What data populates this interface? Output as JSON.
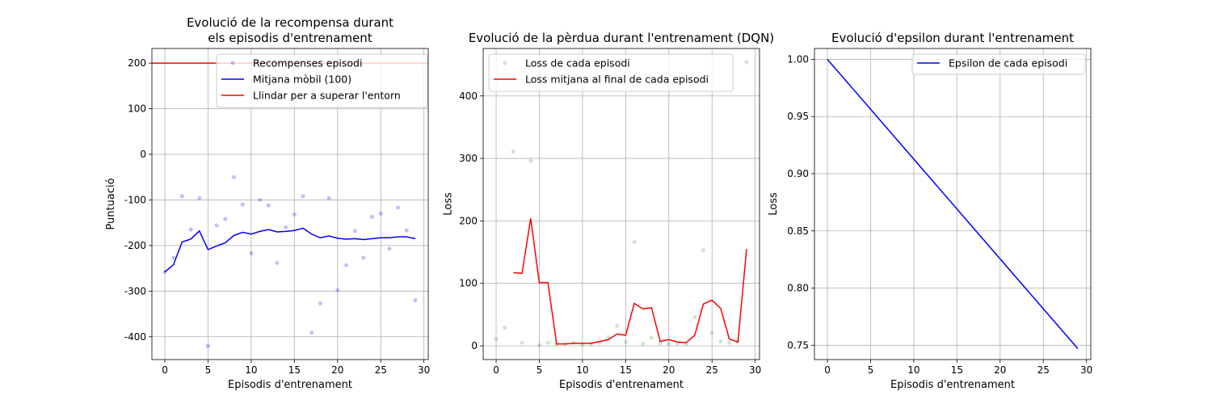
{
  "chart_data": [
    {
      "type": "scatter",
      "title_lines": [
        "Evolució de la recompensa durant",
        "els episodis d'entrenament"
      ],
      "xlabel": "Episodis d'entrenament",
      "ylabel": "Puntuació",
      "xlim": [
        -1.5,
        30.5
      ],
      "ylim": [
        -450,
        232
      ],
      "xticks": [
        0,
        5,
        10,
        15,
        20,
        25,
        30
      ],
      "yticks": [
        -400,
        -300,
        -200,
        -100,
        0,
        100,
        200
      ],
      "grid": true,
      "legend_position": "upper-right",
      "series": [
        {
          "name": "Recompenses episodi",
          "kind": "scatter",
          "color": "#0000ff",
          "x": [
            0,
            1,
            2,
            3,
            4,
            5,
            6,
            7,
            8,
            9,
            10,
            11,
            12,
            13,
            14,
            15,
            16,
            17,
            18,
            19,
            20,
            21,
            22,
            23,
            24,
            25,
            26,
            27,
            28,
            29
          ],
          "y": [
            -258,
            -227,
            -92,
            -165,
            -96,
            -420,
            -156,
            -142,
            -50,
            -110,
            -217,
            -100,
            -112,
            -238,
            -160,
            -132,
            -92,
            -391,
            -327,
            -96,
            -298,
            -243,
            -168,
            -227,
            -137,
            -130,
            -207,
            -117,
            -167,
            -320
          ]
        },
        {
          "name": "Mitjana mòbil (100)",
          "kind": "line",
          "color": "#0000ff",
          "x": [
            0,
            1,
            2,
            3,
            4,
            5,
            6,
            7,
            8,
            9,
            10,
            11,
            12,
            13,
            14,
            15,
            16,
            17,
            18,
            19,
            20,
            21,
            22,
            23,
            24,
            25,
            26,
            27,
            28,
            29
          ],
          "y": [
            -258,
            -242,
            -192,
            -186,
            -168,
            -209,
            -201,
            -194,
            -178,
            -171,
            -175,
            -169,
            -165,
            -170,
            -169,
            -167,
            -162,
            -175,
            -183,
            -179,
            -184,
            -186,
            -185,
            -187,
            -185,
            -183,
            -183,
            -181,
            -181,
            -185
          ]
        },
        {
          "name": "Llindar per a superar l'entorn",
          "kind": "hline",
          "color": "#ff0000",
          "y": 200
        }
      ]
    },
    {
      "type": "scatter",
      "title_lines": [
        "Evolució de la pèrdua durant l'entrenament (DQN)"
      ],
      "xlabel": "Episodis d'entrenament",
      "ylabel": "Loss",
      "xlim": [
        -1.5,
        30.5
      ],
      "ylim": [
        -22,
        476
      ],
      "xticks": [
        0,
        5,
        10,
        15,
        20,
        25,
        30
      ],
      "yticks": [
        0,
        100,
        200,
        300,
        400
      ],
      "grid": true,
      "legend_position": "upper-left",
      "series": [
        {
          "name": "Loss de cada episodi",
          "kind": "scatter",
          "color": "#2ca02c",
          "x": [
            0,
            1,
            2,
            3,
            4,
            5,
            6,
            7,
            8,
            9,
            10,
            11,
            12,
            13,
            14,
            15,
            16,
            17,
            18,
            19,
            20,
            21,
            22,
            23,
            24,
            25,
            26,
            27,
            28,
            29
          ],
          "y": [
            11,
            29,
            311,
            5,
            296,
            1,
            5,
            2,
            3,
            5,
            2,
            3,
            5,
            14,
            32,
            6,
            166,
            3,
            13,
            4,
            3,
            4,
            3,
            46,
            153,
            21,
            7,
            5,
            7,
            454
          ]
        },
        {
          "name": "Loss mitjana al final de cada episodi",
          "kind": "line",
          "color": "#ff0000",
          "x": [
            2,
            3,
            4,
            5,
            6,
            7,
            8,
            9,
            10,
            11,
            12,
            13,
            14,
            15,
            16,
            17,
            18,
            19,
            20,
            21,
            22,
            23,
            24,
            25,
            26,
            27,
            28,
            29
          ],
          "y": [
            117,
            116,
            204,
            101,
            101,
            3,
            3,
            4,
            4,
            4,
            7,
            10,
            19,
            17,
            68,
            59,
            61,
            7,
            10,
            6,
            5,
            17,
            67,
            73,
            60,
            11,
            6,
            155
          ]
        }
      ]
    },
    {
      "type": "line",
      "title_lines": [
        "Evolució d'epsilon durant l'entrenament"
      ],
      "xlabel": "Episodis d'entrenament",
      "ylabel": "Loss",
      "xlim": [
        -1.5,
        30.5
      ],
      "ylim": [
        0.7375,
        1.0095
      ],
      "xticks": [
        0,
        5,
        10,
        15,
        20,
        25,
        30
      ],
      "yticks": [
        0.75,
        0.8,
        0.85,
        0.9,
        0.95,
        1.0
      ],
      "ytick_decimals": 2,
      "grid": true,
      "legend_position": "upper-right",
      "series": [
        {
          "name": "Epsilon de cada episodi",
          "kind": "line",
          "color": "#0000ff",
          "x": [
            0,
            29
          ],
          "y": [
            1.0,
            0.747
          ]
        }
      ]
    }
  ]
}
